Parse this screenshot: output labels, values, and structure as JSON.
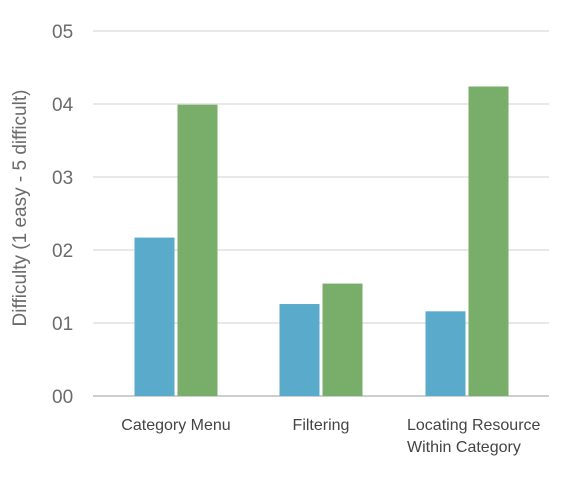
{
  "chart_data": {
    "type": "bar",
    "title": "",
    "xlabel": "",
    "ylabel": "Difficulty (1 easy - 5 difficult)",
    "ylim": [
      0,
      5
    ],
    "yticks": [
      0,
      1,
      2,
      3,
      4,
      5
    ],
    "ytick_labels": [
      "00",
      "01",
      "02",
      "03",
      "04",
      "05"
    ],
    "grid": true,
    "legend": "none",
    "categories": [
      [
        "Category Menu"
      ],
      [
        "Filtering"
      ],
      [
        "Locating Resource",
        "Within Category"
      ]
    ],
    "series": [
      {
        "color": "#5aaacb",
        "values": [
          2.17,
          1.26,
          1.16
        ]
      },
      {
        "color": "#79ad6a",
        "values": [
          3.99,
          1.54,
          4.24
        ]
      }
    ]
  }
}
